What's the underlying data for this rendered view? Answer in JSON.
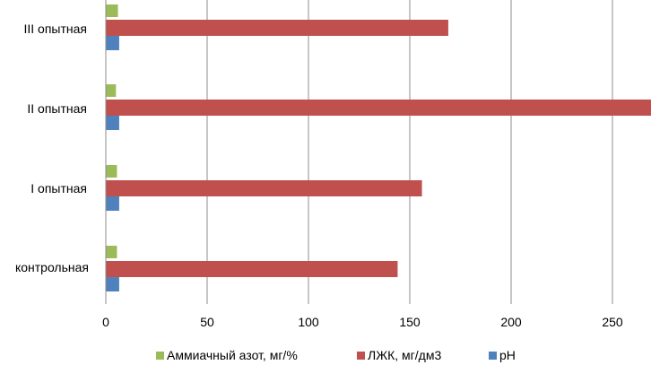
{
  "chart_data": {
    "type": "bar",
    "orientation": "horizontal",
    "title": "",
    "xlabel": "",
    "ylabel": "",
    "categories": [
      "контрольная",
      "I  опытная",
      "II  опытная",
      "III  опытная"
    ],
    "series": [
      {
        "name": "Аммиачный азот, мг/%",
        "color": "#9BBB59",
        "values": [
          5.5,
          5.5,
          5,
          6
        ]
      },
      {
        "name": "ЛЖК, мг/дм3",
        "color": "#C0504D",
        "values": [
          144,
          156,
          270,
          169
        ]
      },
      {
        "name": "pH",
        "color": "#4F81BD",
        "values": [
          6.6,
          6.6,
          6.6,
          6.6
        ]
      }
    ],
    "xlim": [
      0,
      270
    ],
    "xticks": [
      "0",
      "50",
      "100",
      "150",
      "200",
      "250"
    ],
    "grid": "vertical",
    "legend": "bottom"
  }
}
